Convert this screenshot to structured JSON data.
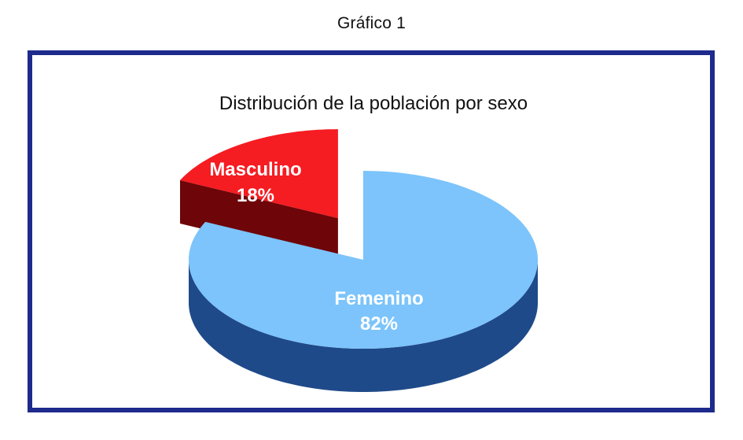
{
  "figure_label": "Gráfico 1",
  "chart_data": {
    "type": "pie",
    "title": "Distribución de la población por sexo",
    "slices": [
      {
        "name": "Femenino",
        "value": 82,
        "value_label": "82%",
        "color": "#7cc4fb",
        "side_color": "#1f4a8a",
        "exploded": false
      },
      {
        "name": "Masculino",
        "value": 18,
        "value_label": "18%",
        "color": "#f51c22",
        "side_color": "#6e0508",
        "exploded": true
      }
    ],
    "style": "3d",
    "legend": "none",
    "frame_color": "#1e2a8c"
  }
}
